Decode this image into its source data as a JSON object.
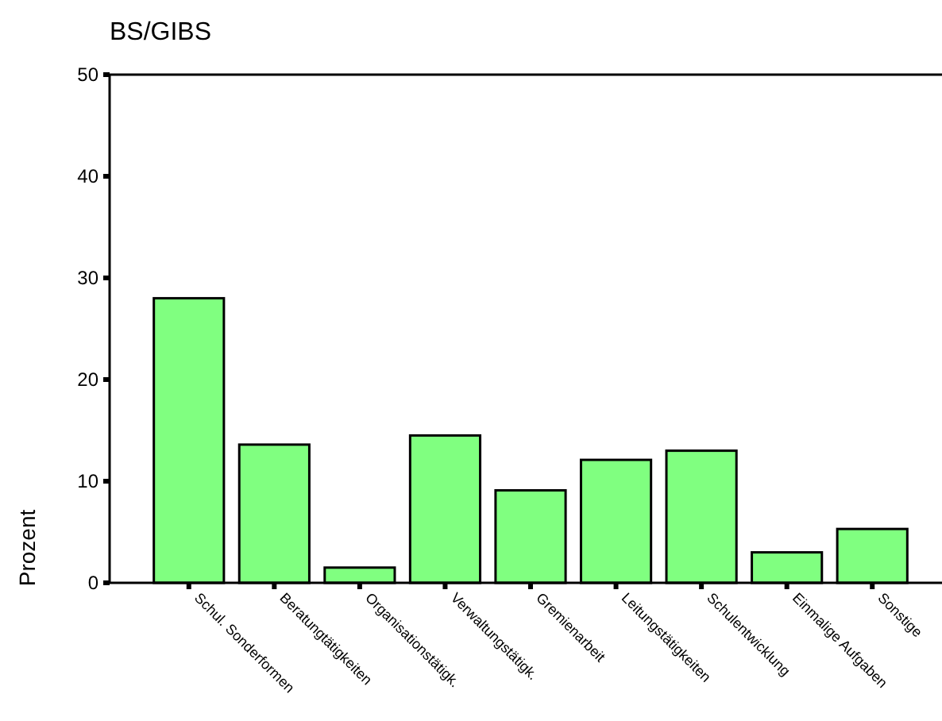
{
  "chart_data": {
    "type": "bar",
    "title": "BS/GIBS",
    "ylabel": "Prozent",
    "categories": [
      "Schul. Sonderformen",
      "Beratungtätigkeiten",
      "Organisationstätigk.",
      "Verwaltungstätigk.",
      "Gremienarbeit",
      "Leitungstätigkeiten",
      "Schulentwicklung",
      "Einmalige Aufgaben",
      "Sonstige"
    ],
    "values": [
      28.0,
      13.6,
      1.5,
      14.5,
      9.1,
      12.1,
      13.0,
      3.0,
      5.3
    ],
    "color": "#80ff80",
    "ylim": [
      0,
      50
    ],
    "yticks": [
      0,
      10,
      20,
      30,
      40,
      50
    ],
    "grid": false
  }
}
